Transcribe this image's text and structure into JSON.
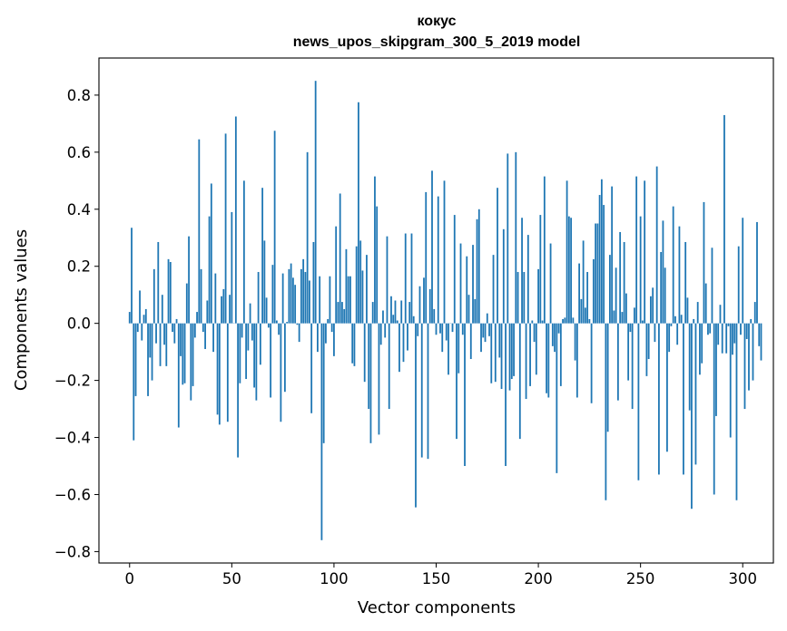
{
  "chart_data": {
    "type": "bar",
    "title_line1": "кокус",
    "title_line2": "news_upos_skipgram_300_5_2019 model",
    "xlabel": "Vector components",
    "ylabel": "Components values",
    "xlim": [
      -15,
      315
    ],
    "ylim": [
      -0.84,
      0.93
    ],
    "xticks": [
      0,
      50,
      100,
      150,
      200,
      250,
      300
    ],
    "xtick_labels": [
      "0",
      "50",
      "100",
      "150",
      "200",
      "250",
      "300"
    ],
    "yticks": [
      -0.8,
      -0.6,
      -0.4,
      -0.2,
      0.0,
      0.2,
      0.4,
      0.6,
      0.8
    ],
    "ytick_labels": [
      "−0.8",
      "−0.6",
      "−0.4",
      "−0.2",
      "0.0",
      "0.2",
      "0.4",
      "0.6",
      "0.8"
    ],
    "bar_color": "#1f77b4",
    "values": [
      0.04,
      0.335,
      -0.41,
      -0.255,
      -0.03,
      0.115,
      -0.06,
      0.03,
      0.05,
      -0.255,
      -0.12,
      -0.2,
      0.19,
      -0.07,
      0.285,
      -0.15,
      0.1,
      -0.075,
      -0.15,
      0.225,
      0.215,
      -0.03,
      -0.07,
      0.015,
      -0.365,
      -0.115,
      -0.215,
      -0.21,
      0.14,
      0.305,
      -0.27,
      -0.22,
      -0.05,
      0.04,
      0.645,
      0.19,
      -0.03,
      -0.09,
      0.08,
      0.375,
      0.49,
      -0.1,
      0.175,
      -0.32,
      -0.355,
      0.095,
      0.12,
      0.665,
      -0.345,
      0.1,
      0.39,
      0.0,
      0.725,
      -0.47,
      -0.21,
      -0.05,
      0.5,
      -0.195,
      -0.095,
      0.07,
      -0.06,
      -0.225,
      -0.27,
      0.18,
      -0.145,
      0.475,
      0.29,
      0.09,
      -0.015,
      -0.26,
      0.205,
      0.675,
      0.01,
      -0.04,
      -0.345,
      0.175,
      -0.24,
      0.005,
      0.19,
      0.21,
      0.16,
      0.135,
      -0.005,
      -0.065,
      0.19,
      0.225,
      0.18,
      0.6,
      0.15,
      -0.315,
      0.285,
      0.85,
      -0.1,
      0.165,
      -0.76,
      -0.42,
      -0.07,
      0.015,
      0.165,
      -0.03,
      -0.115,
      0.34,
      0.075,
      0.455,
      0.075,
      0.05,
      0.26,
      0.165,
      0.165,
      -0.14,
      -0.15,
      0.27,
      0.775,
      0.29,
      0.185,
      -0.205,
      0.24,
      -0.3,
      -0.42,
      0.075,
      0.515,
      0.41,
      -0.39,
      -0.075,
      0.045,
      -0.05,
      0.305,
      -0.3,
      0.095,
      0.03,
      0.08,
      0.01,
      -0.17,
      0.08,
      -0.135,
      0.315,
      -0.095,
      0.075,
      0.315,
      0.025,
      -0.645,
      -0.045,
      0.13,
      -0.47,
      0.16,
      0.46,
      -0.475,
      0.12,
      0.535,
      0.05,
      -0.04,
      0.445,
      -0.035,
      -0.1,
      0.5,
      -0.06,
      -0.18,
      0.0,
      -0.03,
      0.38,
      -0.405,
      -0.175,
      0.28,
      -0.04,
      -0.5,
      0.235,
      0.1,
      -0.125,
      0.275,
      0.085,
      0.365,
      0.4,
      -0.1,
      -0.05,
      -0.065,
      0.035,
      -0.045,
      -0.21,
      0.24,
      -0.205,
      0.475,
      -0.12,
      -0.23,
      0.33,
      -0.5,
      0.595,
      -0.235,
      -0.195,
      -0.185,
      0.6,
      0.18,
      -0.405,
      0.37,
      0.18,
      -0.265,
      0.31,
      -0.22,
      0.01,
      -0.065,
      -0.18,
      0.19,
      0.38,
      0.01,
      0.515,
      -0.245,
      -0.26,
      0.28,
      -0.08,
      -0.1,
      -0.525,
      -0.035,
      -0.22,
      0.015,
      0.02,
      0.5,
      0.375,
      0.37,
      0.02,
      -0.13,
      -0.26,
      0.21,
      0.085,
      0.29,
      0.055,
      0.18,
      0.015,
      -0.28,
      0.225,
      0.35,
      0.35,
      0.45,
      0.505,
      0.415,
      -0.62,
      -0.38,
      0.24,
      0.48,
      0.045,
      0.195,
      -0.27,
      0.32,
      0.04,
      0.285,
      0.105,
      -0.2,
      -0.03,
      -0.3,
      0.055,
      0.515,
      -0.55,
      0.375,
      0.01,
      0.5,
      -0.185,
      -0.125,
      0.095,
      0.125,
      -0.065,
      0.55,
      -0.53,
      0.25,
      0.36,
      0.195,
      -0.45,
      -0.1,
      -0.01,
      0.41,
      0.025,
      -0.075,
      0.34,
      0.03,
      -0.53,
      0.285,
      0.09,
      -0.305,
      -0.65,
      0.015,
      -0.495,
      0.075,
      -0.18,
      -0.14,
      0.425,
      0.14,
      -0.04,
      -0.035,
      0.265,
      -0.6,
      -0.325,
      -0.075,
      0.065,
      -0.105,
      0.73,
      -0.105,
      -0.01,
      -0.4,
      -0.11,
      -0.07,
      -0.62,
      0.27,
      -0.04,
      0.37,
      -0.3,
      -0.055,
      -0.235,
      0.015,
      -0.2,
      0.075,
      0.355,
      -0.08,
      -0.13
    ]
  }
}
